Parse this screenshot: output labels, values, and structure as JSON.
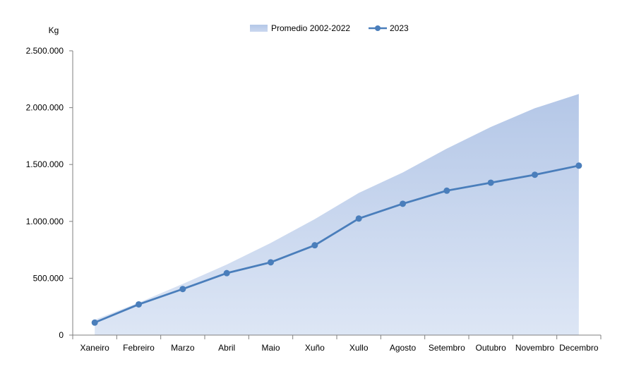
{
  "chart_data": {
    "type": "area",
    "ylabel": "Kg",
    "categories": [
      "Xaneiro",
      "Febreiro",
      "Marzo",
      "Abril",
      "Maio",
      "Xuño",
      "Xullo",
      "Agosto",
      "Setembro",
      "Outubro",
      "Novembro",
      "Decembro"
    ],
    "ylim": [
      0,
      2500000
    ],
    "yticks": [
      0,
      500000,
      1000000,
      1500000,
      2000000,
      2500000
    ],
    "ytick_labels": [
      "0",
      "500.000",
      "1.000.000",
      "1.500.000",
      "2.000.000",
      "2.500.000"
    ],
    "grid": false,
    "legend_position": "top-center",
    "series": [
      {
        "name": "Promedio 2002-2022",
        "kind": "area",
        "color": "#b4c7e7",
        "values": [
          135000,
          285000,
          450000,
          620000,
          810000,
          1020000,
          1250000,
          1430000,
          1640000,
          1830000,
          1995000,
          2120000
        ]
      },
      {
        "name": "2023",
        "kind": "line",
        "color": "#4a7ebb",
        "values": [
          110000,
          270000,
          405000,
          545000,
          640000,
          790000,
          1025000,
          1155000,
          1270000,
          1340000,
          1410000,
          1490000
        ]
      }
    ]
  }
}
